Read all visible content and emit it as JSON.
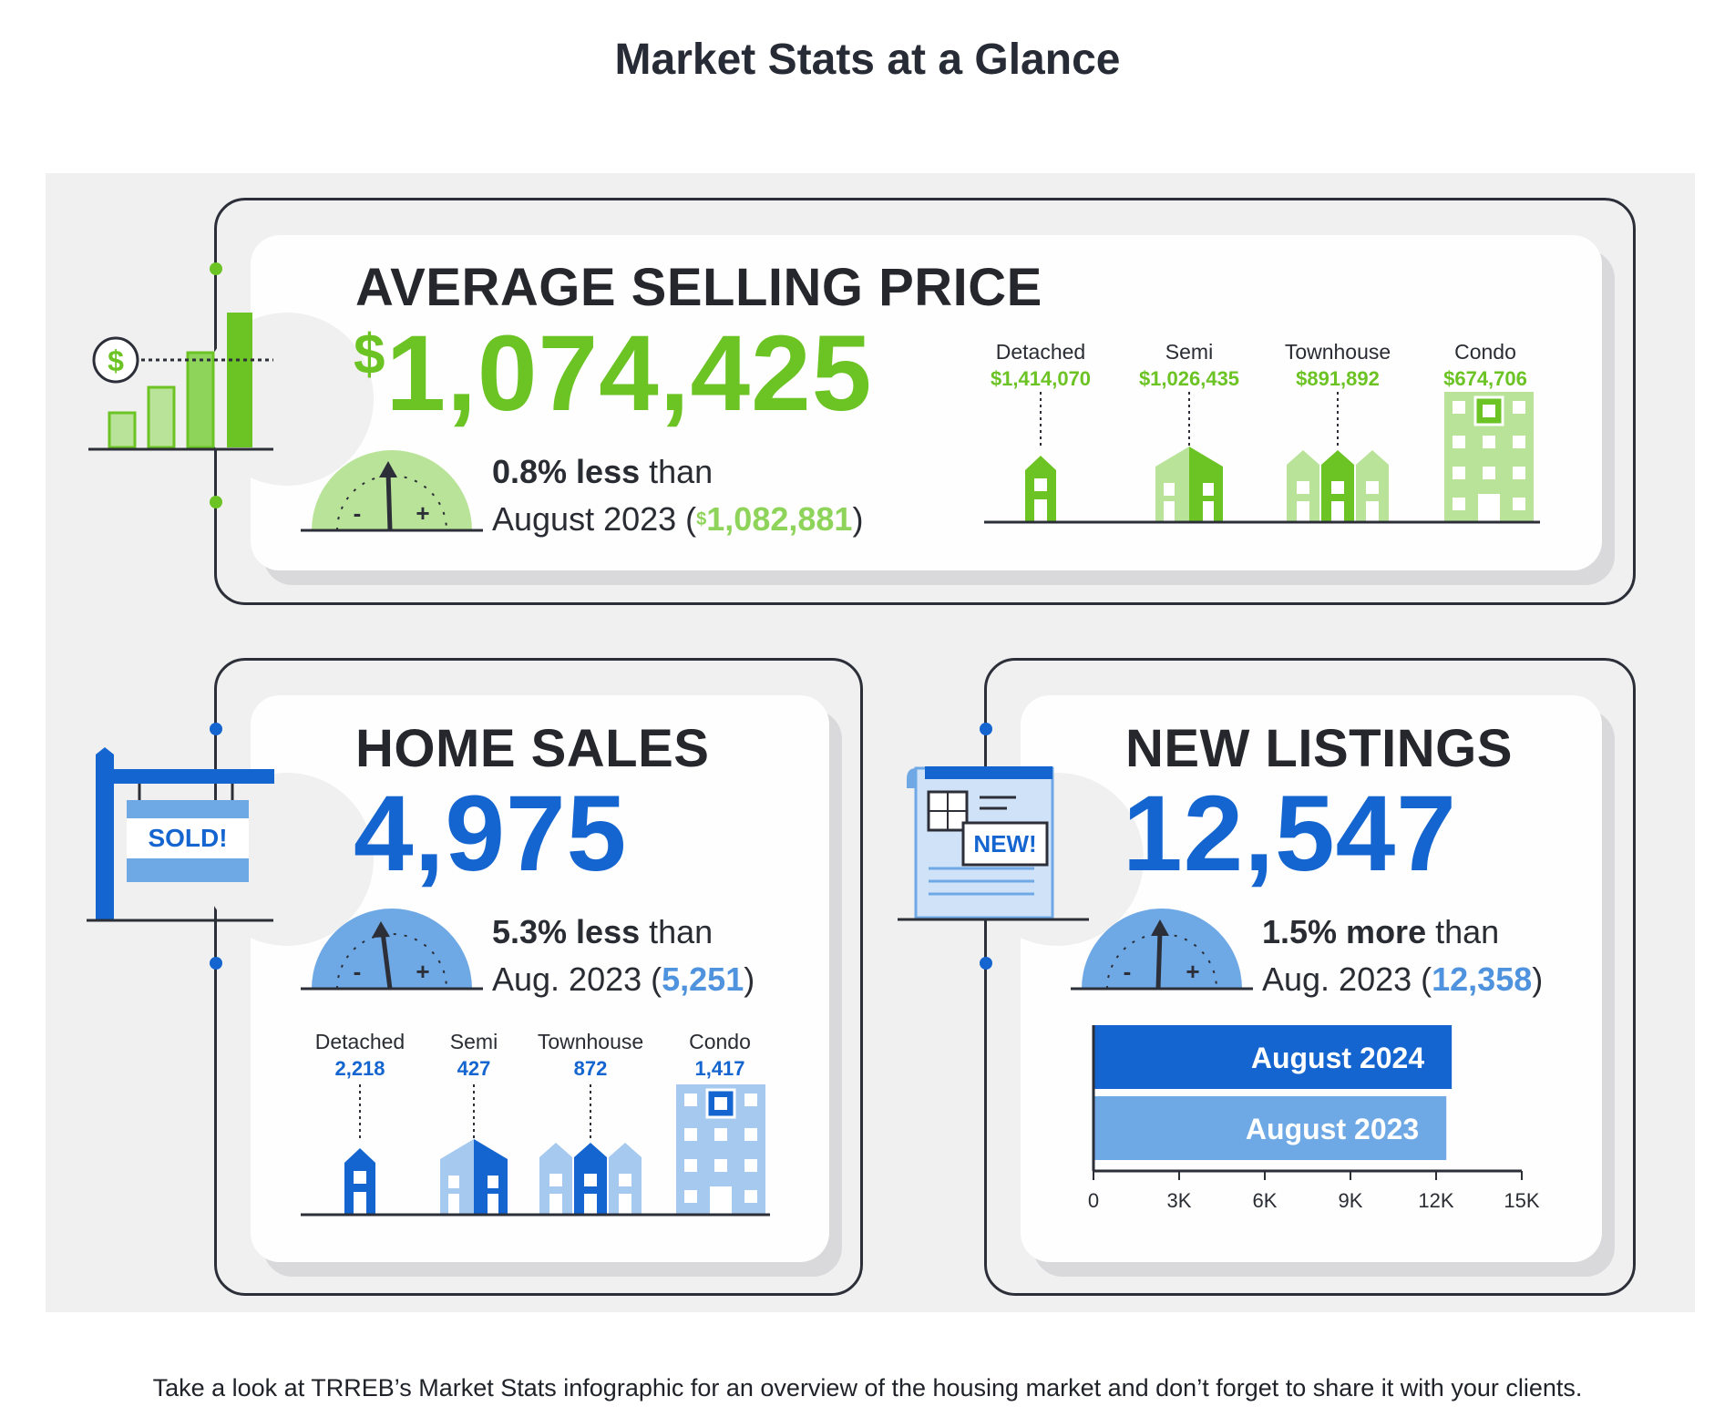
{
  "page": {
    "title": "Market Stats at a Glance",
    "footer": "Take a look at TRREB’s Market Stats infographic for an overview of the housing market and don’t forget to share it with your clients."
  },
  "colors": {
    "green": "#6cc324",
    "green_light": "#b9e399",
    "blue": "#1565d0",
    "blue_light": "#6ea9e6",
    "dark": "#2c2f38",
    "panel_bg": "#f0f0f1"
  },
  "price": {
    "heading": "AVERAGE SELLING PRICE",
    "currency": "$",
    "value": "1,074,425",
    "change_pct": "0.8% less",
    "change_word": "than",
    "prev_label": "August 2023 (",
    "prev_currency": "$",
    "prev_value": "1,082,881",
    "prev_close": ")",
    "gauge_minus": "-",
    "gauge_plus": "+",
    "icon": "dollar-bar-chart-icon",
    "types": [
      {
        "label": "Detached",
        "value": "$1,414,070"
      },
      {
        "label": "Semi",
        "value": "$1,026,435"
      },
      {
        "label": "Townhouse",
        "value": "$891,892"
      },
      {
        "label": "Condo",
        "value": "$674,706"
      }
    ]
  },
  "sales": {
    "heading": "HOME SALES",
    "value": "4,975",
    "change_pct": "5.3% less",
    "change_word": "than",
    "prev_label": "Aug. 2023 (",
    "prev_value": "5,251",
    "prev_close": ")",
    "sign_text": "SOLD!",
    "icon": "sold-sign-icon",
    "types": [
      {
        "label": "Detached",
        "value": "2,218"
      },
      {
        "label": "Semi",
        "value": "427"
      },
      {
        "label": "Townhouse",
        "value": "872"
      },
      {
        "label": "Condo",
        "value": "1,417"
      }
    ]
  },
  "listings": {
    "heading": "NEW LISTINGS",
    "value": "12,547",
    "change_pct": "1.5% more",
    "change_word": "than",
    "prev_label": "Aug. 2023 (",
    "prev_value": "12,358",
    "prev_close": ")",
    "badge_text": "NEW!",
    "icon": "new-listing-document-icon"
  },
  "chart_data": {
    "type": "bar",
    "orientation": "horizontal",
    "categories": [
      "August 2024",
      "August 2023"
    ],
    "values": [
      12547,
      12358
    ],
    "colors": [
      "#1565d0",
      "#6ea9e6"
    ],
    "xlim": [
      0,
      15000
    ],
    "xticks": [
      "0",
      "3K",
      "6K",
      "9K",
      "12K",
      "15K"
    ],
    "grid": false
  }
}
